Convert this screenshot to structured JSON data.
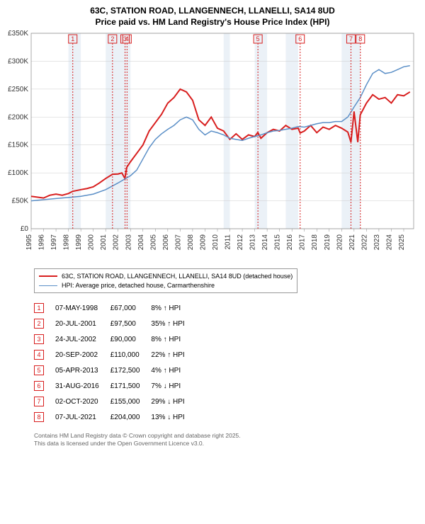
{
  "title_line1": "63C, STATION ROAD, LLANGENNECH, LLANELLI, SA14 8UD",
  "title_line2": "Price paid vs. HM Land Registry's House Price Index (HPI)",
  "chart": {
    "type": "line",
    "xlim": [
      1995,
      2025.8
    ],
    "ylim": [
      0,
      350000
    ],
    "ytick_step": 50000,
    "ytick_labels": [
      "£0",
      "£50K",
      "£100K",
      "£150K",
      "£200K",
      "£250K",
      "£300K",
      "£350K"
    ],
    "xticks": [
      1995,
      1996,
      1997,
      1998,
      1999,
      2000,
      2001,
      2002,
      2003,
      2004,
      2005,
      2006,
      2007,
      2008,
      2009,
      2010,
      2011,
      2012,
      2013,
      2014,
      2015,
      2016,
      2017,
      2018,
      2019,
      2020,
      2021,
      2022,
      2023,
      2024,
      2025
    ],
    "background_color": "#ffffff",
    "grid_color": "#cccccc",
    "shading_bands": [
      [
        1998,
        1999
      ],
      [
        2001,
        2003
      ],
      [
        2010.5,
        2011
      ],
      [
        2013,
        2014
      ],
      [
        2015.5,
        2016.5
      ],
      [
        2020,
        2021.5
      ]
    ],
    "series": [
      {
        "name": "price_paid",
        "label": "63C, STATION ROAD, LLANGENNECH, LLANELLI, SA14 8UD (detached house)",
        "color": "#d81e1e",
        "stroke_width": 2,
        "points": [
          [
            1995,
            58000
          ],
          [
            1996,
            55000
          ],
          [
            1996.5,
            60000
          ],
          [
            1997,
            62000
          ],
          [
            1997.5,
            60000
          ],
          [
            1998,
            63000
          ],
          [
            1998.35,
            67000
          ],
          [
            1999,
            70000
          ],
          [
            1999.5,
            72000
          ],
          [
            2000,
            75000
          ],
          [
            2000.5,
            82000
          ],
          [
            2001,
            90000
          ],
          [
            2001.55,
            97500
          ],
          [
            2002,
            98000
          ],
          [
            2002.3,
            100000
          ],
          [
            2002.55,
            90000
          ],
          [
            2002.7,
            110000
          ],
          [
            2003,
            120000
          ],
          [
            2003.5,
            135000
          ],
          [
            2004,
            150000
          ],
          [
            2004.5,
            175000
          ],
          [
            2005,
            190000
          ],
          [
            2005.5,
            205000
          ],
          [
            2006,
            225000
          ],
          [
            2006.5,
            235000
          ],
          [
            2007,
            250000
          ],
          [
            2007.5,
            245000
          ],
          [
            2008,
            230000
          ],
          [
            2008.5,
            195000
          ],
          [
            2009,
            185000
          ],
          [
            2009.5,
            200000
          ],
          [
            2010,
            180000
          ],
          [
            2010.5,
            175000
          ],
          [
            2011,
            160000
          ],
          [
            2011.5,
            170000
          ],
          [
            2012,
            160000
          ],
          [
            2012.5,
            168000
          ],
          [
            2013,
            165000
          ],
          [
            2013.25,
            172500
          ],
          [
            2013.5,
            162000
          ],
          [
            2014,
            172000
          ],
          [
            2014.5,
            178000
          ],
          [
            2015,
            175000
          ],
          [
            2015.5,
            185000
          ],
          [
            2016,
            178000
          ],
          [
            2016.5,
            180000
          ],
          [
            2016.66,
            171500
          ],
          [
            2017,
            175000
          ],
          [
            2017.5,
            185000
          ],
          [
            2018,
            172000
          ],
          [
            2018.5,
            182000
          ],
          [
            2019,
            178000
          ],
          [
            2019.5,
            185000
          ],
          [
            2020,
            180000
          ],
          [
            2020.5,
            173000
          ],
          [
            2020.75,
            155000
          ],
          [
            2021,
            210000
          ],
          [
            2021.3,
            155000
          ],
          [
            2021.5,
            204000
          ],
          [
            2022,
            225000
          ],
          [
            2022.5,
            240000
          ],
          [
            2023,
            232000
          ],
          [
            2023.5,
            235000
          ],
          [
            2024,
            225000
          ],
          [
            2024.5,
            240000
          ],
          [
            2025,
            238000
          ],
          [
            2025.5,
            245000
          ]
        ]
      },
      {
        "name": "hpi",
        "label": "HPI: Average price, detached house, Carmarthenshire",
        "color": "#5b8fc7",
        "stroke_width": 1.5,
        "points": [
          [
            1995,
            50000
          ],
          [
            1996,
            52000
          ],
          [
            1997,
            54000
          ],
          [
            1998,
            56000
          ],
          [
            1999,
            58000
          ],
          [
            2000,
            62000
          ],
          [
            2001,
            70000
          ],
          [
            2002,
            82000
          ],
          [
            2003,
            95000
          ],
          [
            2003.5,
            105000
          ],
          [
            2004,
            125000
          ],
          [
            2004.5,
            145000
          ],
          [
            2005,
            160000
          ],
          [
            2005.5,
            170000
          ],
          [
            2006,
            178000
          ],
          [
            2006.5,
            185000
          ],
          [
            2007,
            195000
          ],
          [
            2007.5,
            200000
          ],
          [
            2008,
            195000
          ],
          [
            2008.5,
            178000
          ],
          [
            2009,
            168000
          ],
          [
            2009.5,
            175000
          ],
          [
            2010,
            172000
          ],
          [
            2010.5,
            168000
          ],
          [
            2011,
            162000
          ],
          [
            2011.5,
            160000
          ],
          [
            2012,
            158000
          ],
          [
            2012.5,
            162000
          ],
          [
            2013,
            165000
          ],
          [
            2013.5,
            168000
          ],
          [
            2014,
            172000
          ],
          [
            2014.5,
            175000
          ],
          [
            2015,
            176000
          ],
          [
            2015.5,
            178000
          ],
          [
            2016,
            180000
          ],
          [
            2016.5,
            183000
          ],
          [
            2017,
            182000
          ],
          [
            2017.5,
            185000
          ],
          [
            2018,
            188000
          ],
          [
            2018.5,
            190000
          ],
          [
            2019,
            190000
          ],
          [
            2019.5,
            192000
          ],
          [
            2020,
            192000
          ],
          [
            2020.5,
            200000
          ],
          [
            2021,
            218000
          ],
          [
            2021.5,
            235000
          ],
          [
            2022,
            258000
          ],
          [
            2022.5,
            278000
          ],
          [
            2023,
            285000
          ],
          [
            2023.5,
            278000
          ],
          [
            2024,
            280000
          ],
          [
            2024.5,
            285000
          ],
          [
            2025,
            290000
          ],
          [
            2025.5,
            292000
          ]
        ]
      }
    ],
    "event_markers": [
      {
        "n": "1",
        "x": 1998.35,
        "color": "#d81e1e"
      },
      {
        "n": "2",
        "x": 2001.55,
        "color": "#d81e1e"
      },
      {
        "n": "3",
        "x": 2002.56,
        "color": "#d81e1e"
      },
      {
        "n": "4",
        "x": 2002.72,
        "color": "#d81e1e"
      },
      {
        "n": "5",
        "x": 2013.26,
        "color": "#d81e1e"
      },
      {
        "n": "6",
        "x": 2016.66,
        "color": "#d81e1e"
      },
      {
        "n": "7",
        "x": 2020.75,
        "color": "#d81e1e"
      },
      {
        "n": "8",
        "x": 2021.51,
        "color": "#d81e1e"
      }
    ]
  },
  "legend": [
    {
      "color": "#d81e1e",
      "width": 2,
      "label": "63C, STATION ROAD, LLANGENNECH, LLANELLI, SA14 8UD (detached house)"
    },
    {
      "color": "#5b8fc7",
      "width": 1.5,
      "label": "HPI: Average price, detached house, Carmarthenshire"
    }
  ],
  "transactions": [
    {
      "n": "1",
      "date": "07-MAY-1998",
      "price": "£67,000",
      "pct": "8%",
      "dir": "up",
      "suffix": "HPI",
      "color": "#d81e1e"
    },
    {
      "n": "2",
      "date": "20-JUL-2001",
      "price": "£97,500",
      "pct": "35%",
      "dir": "up",
      "suffix": "HPI",
      "color": "#d81e1e"
    },
    {
      "n": "3",
      "date": "24-JUL-2002",
      "price": "£90,000",
      "pct": "8%",
      "dir": "up",
      "suffix": "HPI",
      "color": "#d81e1e"
    },
    {
      "n": "4",
      "date": "20-SEP-2002",
      "price": "£110,000",
      "pct": "22%",
      "dir": "up",
      "suffix": "HPI",
      "color": "#d81e1e"
    },
    {
      "n": "5",
      "date": "05-APR-2013",
      "price": "£172,500",
      "pct": "4%",
      "dir": "up",
      "suffix": "HPI",
      "color": "#d81e1e"
    },
    {
      "n": "6",
      "date": "31-AUG-2016",
      "price": "£171,500",
      "pct": "7%",
      "dir": "down",
      "suffix": "HPI",
      "color": "#d81e1e"
    },
    {
      "n": "7",
      "date": "02-OCT-2020",
      "price": "£155,000",
      "pct": "29%",
      "dir": "down",
      "suffix": "HPI",
      "color": "#d81e1e"
    },
    {
      "n": "8",
      "date": "07-JUL-2021",
      "price": "£204,000",
      "pct": "13%",
      "dir": "down",
      "suffix": "HPI",
      "color": "#d81e1e"
    }
  ],
  "footer_line1": "Contains HM Land Registry data © Crown copyright and database right 2025.",
  "footer_line2": "This data is licensed under the Open Government Licence v3.0."
}
